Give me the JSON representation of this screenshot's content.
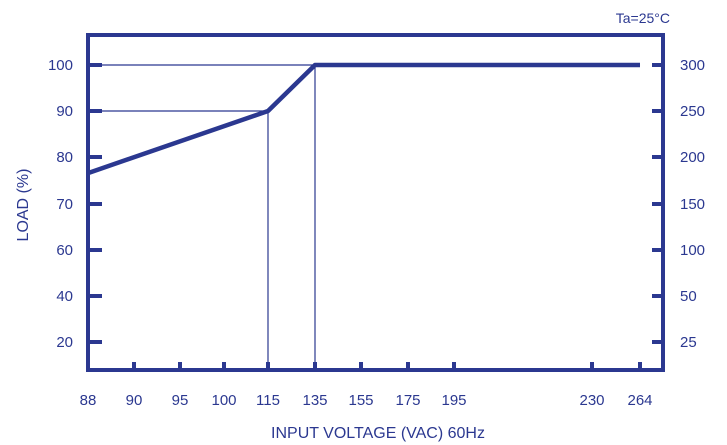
{
  "chart_data": {
    "type": "line",
    "title": "",
    "annotation": "Ta=25°C",
    "xlabel": "INPUT VOLTAGE (VAC) 60Hz",
    "ylabel": "LOAD (%)",
    "color": "#2b3890",
    "x_ticks": [
      "88",
      "90",
      "95",
      "100",
      "115",
      "135",
      "155",
      "175",
      "195",
      "230",
      "264"
    ],
    "y_ticks_left": [
      "20",
      "40",
      "60",
      "70",
      "80",
      "90",
      "100"
    ],
    "y_ticks_right": [
      "25",
      "50",
      "100",
      "150",
      "200",
      "250",
      "300"
    ],
    "grid": false,
    "series": [
      {
        "x": [
          "88",
          "115",
          "135",
          "264"
        ],
        "y": [
          "76.5",
          "90",
          "100",
          "100"
        ]
      }
    ],
    "reference_lines": [
      {
        "x": "115",
        "y": "90"
      },
      {
        "x": "135",
        "y": "100"
      }
    ]
  }
}
